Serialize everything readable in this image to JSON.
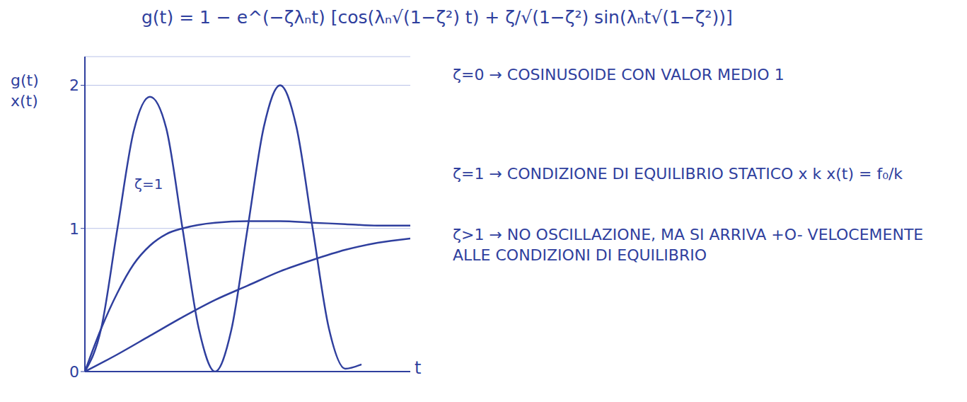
{
  "chart_data": {
    "type": "line",
    "title": "g(t) = 1 − e^(−ζλₙt) [cos(λₙ√(1−ζ²) t) + ζ/√(1−ζ²) sin(λₙt√(1−ζ²))]",
    "ylabel": [
      "g(t)",
      "x(t)"
    ],
    "xlabel": "t",
    "xlim": [
      0,
      10
    ],
    "ylim": [
      0,
      2.2
    ],
    "yticks": [
      0,
      1,
      2
    ],
    "grid": true,
    "tick_labels": "y",
    "series": [
      {
        "name": "ζ=0",
        "color": "#2f3f9e",
        "x": [
          0,
          0.5,
          1,
          1.5,
          2,
          2.5,
          3,
          3.5,
          4,
          4.5,
          5,
          5.5,
          6,
          6.5,
          7,
          7.5,
          8,
          8.5
        ],
        "values": [
          0,
          0.3,
          1,
          1.68,
          1.92,
          1.7,
          1,
          0.3,
          0,
          0.29,
          1,
          1.71,
          2,
          1.71,
          1,
          0.3,
          0.02,
          0.05
        ]
      },
      {
        "name": "ζ=1",
        "color": "#2f3f9e",
        "x": [
          0,
          0.5,
          1,
          1.5,
          2,
          2.5,
          3,
          4,
          5,
          6,
          7,
          8,
          9,
          10
        ],
        "values": [
          0,
          0.3,
          0.55,
          0.75,
          0.88,
          0.96,
          1,
          1.04,
          1.05,
          1.05,
          1.04,
          1.03,
          1.02,
          1.02
        ]
      },
      {
        "name": "ζ>1",
        "color": "#2f3f9e",
        "x": [
          0,
          1,
          2,
          3,
          4,
          5,
          6,
          7,
          8,
          9,
          10
        ],
        "values": [
          0,
          0.12,
          0.25,
          0.38,
          0.5,
          0.6,
          0.7,
          0.78,
          0.85,
          0.9,
          0.93
        ]
      }
    ],
    "annotations": [
      {
        "series": "ζ=0",
        "text": "→ COSINUSOIDE CON VALOR MEDIO 1"
      },
      {
        "series": "ζ=1",
        "text": "→ CONDIZIONE DI EQUILIBRIO STATICO x k   x(t) = f₀/k"
      },
      {
        "series": "ζ>1",
        "text": "→ NO OSCILLAZIONE, MA SI ARRIVA +O- VELOCEMENTE ALLE CONDIZIONI DI EQUILIBRIO"
      }
    ]
  }
}
